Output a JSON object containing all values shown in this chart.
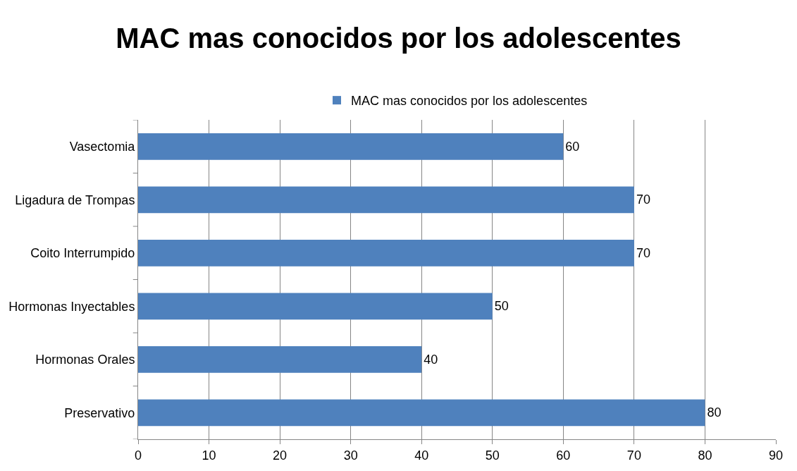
{
  "chart_data": {
    "type": "bar",
    "orientation": "horizontal",
    "title": "MAC mas conocidos por los adolescentes",
    "categories": [
      "Vasectomia",
      "Ligadura de Trompas",
      "Coito Interrumpido",
      "Hormonas Inyectables",
      "Hormonas Orales",
      "Preservativo"
    ],
    "series": [
      {
        "name": "MAC mas conocidos por los adolescentes",
        "color": "#4f81bd",
        "values": [
          60,
          70,
          70,
          50,
          40,
          80
        ]
      }
    ],
    "xlim": [
      0,
      90
    ],
    "xticks": [
      0,
      10,
      20,
      30,
      40,
      50,
      60,
      70,
      80,
      90
    ],
    "grid": "x",
    "legend": "top",
    "data_labels": true
  }
}
